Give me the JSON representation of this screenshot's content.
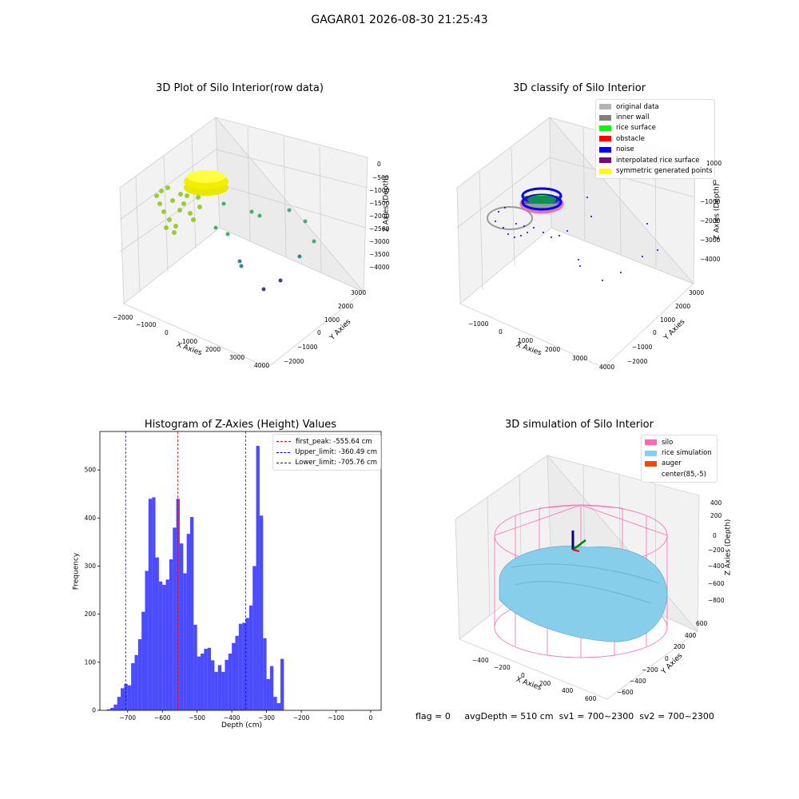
{
  "suptitle": "GAGAR01 2026-08-30 21:25:43",
  "panel1": {
    "title": "3D Plot of Silo Interior(row data)",
    "xlabel": "X Axies",
    "ylabel": "Y Axies",
    "zlabel": "Z Axies (Depth)",
    "xticks": [
      "−2000",
      "−1000",
      "0",
      "1000",
      "2000",
      "3000",
      "4000"
    ],
    "yticks": [
      "−2000",
      "−1000",
      "0",
      "1000",
      "2000",
      "3000"
    ],
    "zticks": [
      "0",
      "−500",
      "−1000",
      "−1500",
      "−2000",
      "−2500",
      "−3000",
      "−3500",
      "−4000"
    ]
  },
  "panel2": {
    "title": "3D classify of Silo Interior",
    "xlabel": "X Axies",
    "ylabel": "Y Axies",
    "zlabel": "Z Axies (Depth)",
    "xticks": [
      "−1000",
      "0",
      "1000",
      "2000",
      "3000",
      "4000"
    ],
    "yticks": [
      "−2000",
      "−1000",
      "0",
      "1000",
      "2000",
      "3000"
    ],
    "zticks": [
      "1000",
      "0",
      "−1000",
      "−2000",
      "−3000",
      "−4000"
    ],
    "legend": [
      {
        "label": "original data",
        "color": "#b3b3b3"
      },
      {
        "label": "inner wall",
        "color": "#808080"
      },
      {
        "label": "rice surface",
        "color": "#00ff00"
      },
      {
        "label": "obstacle",
        "color": "#ff0000"
      },
      {
        "label": "noise",
        "color": "#0000ff"
      },
      {
        "label": "interpolated rice surface",
        "color": "#800080"
      },
      {
        "label": "symmetric generated points",
        "color": "#ffff00"
      }
    ]
  },
  "panel4": {
    "title": "3D simulation of Silo Interior",
    "xlabel": "X Axies",
    "ylabel": "Y Axies",
    "zlabel": "Z Axies (Depth)",
    "xticks": [
      "−400",
      "−200",
      "0",
      "200",
      "400",
      "600"
    ],
    "yticks": [
      "−600",
      "−400",
      "−200",
      "0",
      "200",
      "400",
      "600"
    ],
    "zticks": [
      "400",
      "200",
      "0",
      "−200",
      "−400",
      "−600",
      "−800"
    ],
    "legend": [
      {
        "label": "silo",
        "color": "#ff69b4"
      },
      {
        "label": "rice simulation",
        "color": "#87ceeb"
      },
      {
        "label": "auger",
        "color": "#ff4500"
      },
      {
        "label": "center(85,-5)",
        "color": "#ffffff"
      }
    ]
  },
  "status": {
    "flag": "flag = 0",
    "avg": "avgDepth = 510 cm",
    "sv1": "sv1 = 700~2300",
    "sv2": "sv2 = 700~2300"
  },
  "chart_data": [
    {
      "type": "bar",
      "title": "Histogram of Z-Axies (Height) Values",
      "xlabel": "Depth (cm)",
      "ylabel": "Frequency",
      "xlim": [
        -780,
        30
      ],
      "ylim": [
        0,
        580
      ],
      "xticks": [
        -700,
        -600,
        -500,
        -400,
        -300,
        -200,
        -100,
        0
      ],
      "yticks": [
        0,
        100,
        200,
        300,
        400,
        500
      ],
      "bin_start": -760,
      "bin_width": 10,
      "values": [
        2,
        5,
        12,
        28,
        46,
        55,
        52,
        98,
        115,
        148,
        205,
        290,
        440,
        443,
        318,
        268,
        261,
        272,
        314,
        380,
        440,
        347,
        285,
        367,
        402,
        178,
        112,
        118,
        128,
        130,
        104,
        80,
        94,
        80,
        105,
        118,
        140,
        155,
        180,
        182,
        192,
        218,
        300,
        550,
        405,
        150,
        65,
        92,
        28,
        15,
        107
      ],
      "color": "#0000ff",
      "vlines": [
        {
          "label": "first_peak: -555.64 cm",
          "x": -555.64,
          "color": "red"
        },
        {
          "label": "Upper_limit: -360.49 cm",
          "x": -360.49,
          "color": "blue"
        },
        {
          "label": "Lower_limit: -705.76 cm",
          "x": -705.76,
          "color": "blue"
        }
      ]
    }
  ]
}
